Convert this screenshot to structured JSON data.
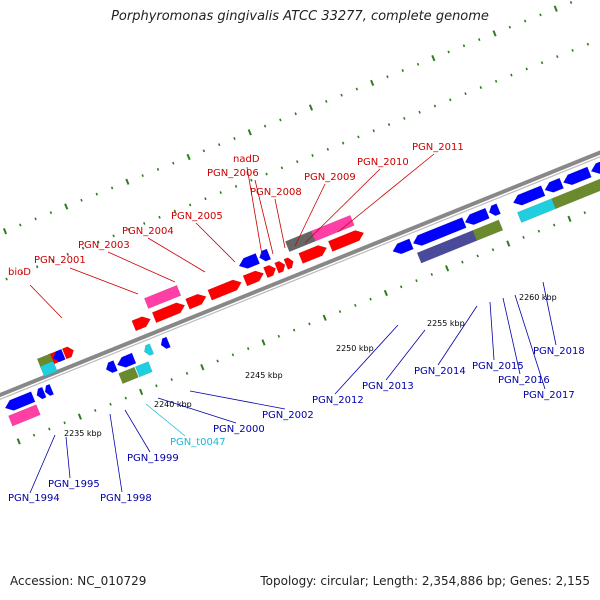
{
  "title": "Porphyromonas gingivalis ATCC 33277, complete genome",
  "accession": "Accession: NC_010729",
  "meta": "Topology: circular; Length: 2,354,886 bp; Genes: 2,155",
  "colors": {
    "backbone": "#888888",
    "forward_gene": "#ff0000",
    "reverse_gene": "#0000ff",
    "pink": "#ff3fa6",
    "olive": "#6b8a2e",
    "cyan": "#1fcfe0",
    "grey": "#666666",
    "navy": "#4a4a9a",
    "tick_green": "#2e7d1f",
    "label_red": "#cc0000",
    "label_blue": "#0000aa",
    "label_cyan": "#1ab8d8"
  },
  "position_ticks": [
    "2235 kbp",
    "2240 kbp",
    "2245 kbp",
    "2250 kbp",
    "2255 kbp",
    "2260 kbp"
  ],
  "labels_top": [
    "bioD",
    "PGN_2001",
    "PGN_2003",
    "PGN_2004",
    "PGN_2005",
    "PGN_2006",
    "nadD",
    "PGN_2008",
    "PGN_2009",
    "PGN_2010",
    "PGN_2011"
  ],
  "labels_bottom": [
    "PGN_1994",
    "PGN_1995",
    "PGN_1998",
    "PGN_1999",
    "PGN_t0047",
    "PGN_2000",
    "PGN_2002",
    "PGN_2012",
    "PGN_2013",
    "PGN_2014",
    "PGN_2015",
    "PGN_2016",
    "PGN_2017",
    "PGN_2018"
  ]
}
